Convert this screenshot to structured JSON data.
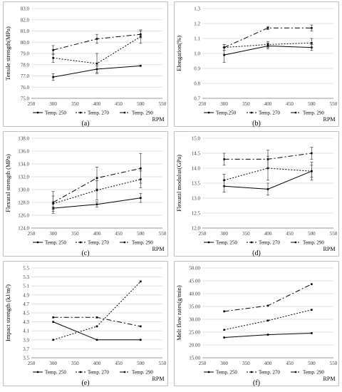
{
  "colors": {
    "line": "#000000",
    "frame": "#bfbfbf",
    "grid": "#d9d9d9"
  },
  "chart_data": [
    {
      "type": "line",
      "panel_label": "(a)",
      "ylabel": "Tensile strength(MPa)",
      "xlabel": "RPM",
      "xlim": [
        250,
        550
      ],
      "xticks": [
        250,
        300,
        350,
        400,
        450,
        500,
        550
      ],
      "ylim": [
        75.0,
        83.0
      ],
      "yticks": [
        "75.0",
        "76.0",
        "77.0",
        "78.0",
        "79.0",
        "80.0",
        "81.0",
        "82.0",
        "83.0"
      ],
      "grid": "horizontal",
      "legend": "bottom",
      "x": [
        300,
        400,
        500
      ],
      "series": [
        {
          "name": "Temp. 250",
          "style": "solid",
          "values": [
            76.9,
            77.6,
            77.9
          ],
          "err": [
            0.3,
            0.3,
            0.0
          ]
        },
        {
          "name": "Temp. 270",
          "style": "dotted",
          "values": [
            78.6,
            78.1,
            80.5
          ],
          "err": [
            0.4,
            0.9,
            0.6
          ]
        },
        {
          "name": "Temp. 290",
          "style": "dashdot",
          "values": [
            79.3,
            80.3,
            80.7
          ],
          "err": [
            0.4,
            0.4,
            0.3
          ]
        }
      ]
    },
    {
      "type": "line",
      "panel_label": "(b)",
      "ylabel": "Elongation(%)",
      "xlabel": "RPM",
      "xlim": [
        250,
        550
      ],
      "xticks": [
        250,
        300,
        350,
        400,
        450,
        500,
        550
      ],
      "ylim": [
        0.7,
        1.3
      ],
      "yticks": [
        "0.7",
        "0.8",
        "0.9",
        "1.0",
        "1.1",
        "1.2",
        "1.3"
      ],
      "grid": "horizontal",
      "legend": "bottom",
      "x": [
        300,
        400,
        500
      ],
      "series": [
        {
          "name": "Temp.250",
          "style": "solid",
          "values": [
            0.99,
            1.05,
            1.04
          ],
          "err": [
            0.05,
            0.02,
            0.02
          ]
        },
        {
          "name": "Temp. 270",
          "style": "dotted",
          "values": [
            1.04,
            1.06,
            1.07
          ],
          "err": [
            0.02,
            0.02,
            0.03
          ]
        },
        {
          "name": "Temp. 290",
          "style": "dashdot",
          "values": [
            1.04,
            1.17,
            1.17
          ],
          "err": [
            0.02,
            0.01,
            0.02
          ]
        }
      ]
    },
    {
      "type": "line",
      "panel_label": "(c)",
      "ylabel": "Flexural strength (MPa)",
      "xlabel": "RPM",
      "xlim": [
        250,
        550
      ],
      "xticks": [
        250,
        300,
        350,
        400,
        450,
        500,
        550
      ],
      "ylim": [
        124.0,
        138.0
      ],
      "yticks": [
        "124.0",
        "126.0",
        "128.0",
        "130.0",
        "132.0",
        "134.0",
        "136.0",
        "138.0"
      ],
      "grid": "horizontal",
      "legend": "bottom",
      "x": [
        300,
        400,
        500
      ],
      "series": [
        {
          "name": "Temp. 250",
          "style": "solid",
          "values": [
            127.1,
            127.7,
            128.7
          ],
          "err": [
            0.2,
            0.4,
            0.7
          ]
        },
        {
          "name": "Temp. 270",
          "style": "dotted",
          "values": [
            127.8,
            129.9,
            131.6
          ],
          "err": [
            1.2,
            1.5,
            1.3
          ]
        },
        {
          "name": "Temp. 290",
          "style": "dashdot",
          "values": [
            128.0,
            131.8,
            133.3
          ],
          "err": [
            1.7,
            1.7,
            2.3
          ]
        }
      ]
    },
    {
      "type": "line",
      "panel_label": "(d)",
      "ylabel": "Flexural modulus(GPa)",
      "xlabel": "RPM",
      "xlim": [
        250,
        550
      ],
      "xticks": [
        250,
        300,
        350,
        400,
        450,
        500,
        550
      ],
      "ylim": [
        12.0,
        15.0
      ],
      "yticks": [
        "12.0",
        "12.5",
        "13.0",
        "13.5",
        "14.0",
        "14.5",
        "15.0"
      ],
      "grid": "horizontal",
      "legend": "bottom",
      "x": [
        300,
        400,
        500
      ],
      "series": [
        {
          "name": "Temp. 250",
          "style": "solid",
          "values": [
            13.4,
            13.3,
            13.9
          ],
          "err": [
            0.2,
            0.2,
            0.3
          ]
        },
        {
          "name": "Temp. 270",
          "style": "dotted",
          "values": [
            13.6,
            14.0,
            13.9
          ],
          "err": [
            0.2,
            0.4,
            0.2
          ]
        },
        {
          "name": "Temp. 290",
          "style": "dashdot",
          "values": [
            14.3,
            14.3,
            14.5
          ],
          "err": [
            0.2,
            0.3,
            0.2
          ]
        }
      ]
    },
    {
      "type": "line",
      "panel_label": "(e)",
      "ylabel": "Impact strength (kJ/m²)",
      "xlabel": "RPM",
      "xlim": [
        250,
        550
      ],
      "xticks": [
        250,
        300,
        350,
        400,
        450,
        500,
        550
      ],
      "ylim": [
        3.5,
        5.5
      ],
      "yticks": [
        "3.5",
        "3.7",
        "3.9",
        "4.1",
        "4.3",
        "4.5",
        "4.7",
        "4.9",
        "5.1",
        "5.3",
        "5.5"
      ],
      "grid": "horizontal",
      "legend": "bottom",
      "x": [
        300,
        400,
        500
      ],
      "series": [
        {
          "name": "Temp. 250",
          "style": "solid",
          "values": [
            4.3,
            3.9,
            3.9
          ],
          "err": [
            0,
            0,
            0
          ]
        },
        {
          "name": "Temp. 270",
          "style": "dotted",
          "values": [
            3.9,
            4.2,
            5.2
          ],
          "err": [
            0,
            0,
            0
          ]
        },
        {
          "name": "Temp. 290",
          "style": "dashdot",
          "values": [
            4.4,
            4.4,
            4.2
          ],
          "err": [
            0,
            0,
            0
          ]
        }
      ]
    },
    {
      "type": "line",
      "panel_label": "(f)",
      "ylabel": "Melt flow rates(g/min)",
      "xlabel": "RPM",
      "xlim": [
        250,
        550
      ],
      "xticks": [
        250,
        300,
        350,
        400,
        450,
        500,
        550
      ],
      "ylim": [
        15.0,
        50.0
      ],
      "yticks": [
        "15.00",
        "20.00",
        "25.00",
        "30.00",
        "35.00",
        "40.00",
        "45.00",
        "50.00"
      ],
      "grid": "horizontal",
      "legend": "bottom",
      "x": [
        300,
        400,
        500
      ],
      "series": [
        {
          "name": "Temp. 250",
          "style": "solid",
          "values": [
            22.9,
            24.0,
            24.6
          ],
          "err": [
            0,
            0,
            0
          ]
        },
        {
          "name": "Temp. 270",
          "style": "dotted",
          "values": [
            25.9,
            29.5,
            33.7
          ],
          "err": [
            0,
            0,
            0
          ]
        },
        {
          "name": "Temp. 290",
          "style": "dashdot",
          "values": [
            33.1,
            35.3,
            43.7
          ],
          "err": [
            0,
            0,
            0
          ]
        }
      ]
    }
  ]
}
